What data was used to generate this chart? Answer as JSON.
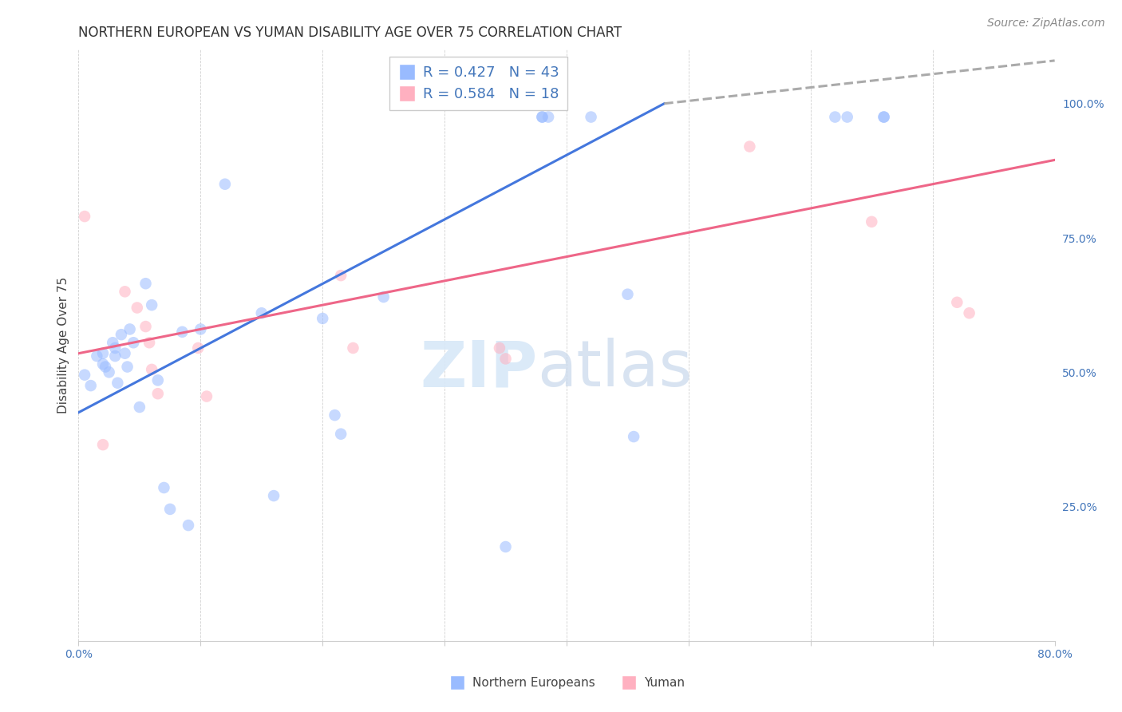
{
  "title": "NORTHERN EUROPEAN VS YUMAN DISABILITY AGE OVER 75 CORRELATION CHART",
  "source": "Source: ZipAtlas.com",
  "ylabel": "Disability Age Over 75",
  "watermark_zip": "ZIP",
  "watermark_atlas": "atlas",
  "xlim": [
    0.0,
    0.8
  ],
  "ylim": [
    0.0,
    1.1
  ],
  "xticks": [
    0.0,
    0.1,
    0.2,
    0.3,
    0.4,
    0.5,
    0.6,
    0.7,
    0.8
  ],
  "yticks_right": [
    0.0,
    0.25,
    0.5,
    0.75,
    1.0
  ],
  "yticklabels_right": [
    "",
    "25.0%",
    "50.0%",
    "75.0%",
    "100.0%"
  ],
  "blue_color": "#99BBFF",
  "pink_color": "#FFB0C0",
  "blue_line_color": "#4477DD",
  "pink_line_color": "#EE6688",
  "dashed_line_color": "#AAAAAA",
  "legend_label1": "Northern Europeans",
  "legend_label2": "Yuman",
  "blue_points_x": [
    0.005,
    0.01,
    0.015,
    0.02,
    0.02,
    0.022,
    0.025,
    0.028,
    0.03,
    0.03,
    0.032,
    0.035,
    0.038,
    0.04,
    0.042,
    0.045,
    0.05,
    0.055,
    0.06,
    0.065,
    0.07,
    0.075,
    0.085,
    0.09,
    0.1,
    0.12,
    0.15,
    0.16,
    0.2,
    0.21,
    0.215,
    0.25,
    0.35,
    0.38,
    0.38,
    0.385,
    0.42,
    0.45,
    0.455,
    0.62,
    0.63,
    0.66,
    0.66
  ],
  "blue_points_y": [
    0.495,
    0.475,
    0.53,
    0.535,
    0.515,
    0.51,
    0.5,
    0.555,
    0.545,
    0.53,
    0.48,
    0.57,
    0.535,
    0.51,
    0.58,
    0.555,
    0.435,
    0.665,
    0.625,
    0.485,
    0.285,
    0.245,
    0.575,
    0.215,
    0.58,
    0.85,
    0.61,
    0.27,
    0.6,
    0.42,
    0.385,
    0.64,
    0.175,
    0.975,
    0.975,
    0.975,
    0.975,
    0.645,
    0.38,
    0.975,
    0.975,
    0.975,
    0.975
  ],
  "pink_points_x": [
    0.005,
    0.02,
    0.038,
    0.048,
    0.055,
    0.058,
    0.06,
    0.065,
    0.098,
    0.105,
    0.215,
    0.225,
    0.345,
    0.35,
    0.55,
    0.65,
    0.72,
    0.73
  ],
  "pink_points_y": [
    0.79,
    0.365,
    0.65,
    0.62,
    0.585,
    0.555,
    0.505,
    0.46,
    0.545,
    0.455,
    0.68,
    0.545,
    0.545,
    0.525,
    0.92,
    0.78,
    0.63,
    0.61
  ],
  "blue_line_x": [
    0.0,
    0.48
  ],
  "blue_line_y": [
    0.425,
    1.0
  ],
  "pink_line_x": [
    0.0,
    0.8
  ],
  "pink_line_y": [
    0.535,
    0.895
  ],
  "dash_line_x": [
    0.48,
    0.8
  ],
  "dash_line_y": [
    1.0,
    1.08
  ],
  "title_fontsize": 12,
  "axis_label_fontsize": 11,
  "tick_fontsize": 10,
  "legend_fontsize": 13,
  "source_fontsize": 10,
  "marker_size": 110,
  "marker_alpha": 0.55,
  "line_width": 2.2
}
